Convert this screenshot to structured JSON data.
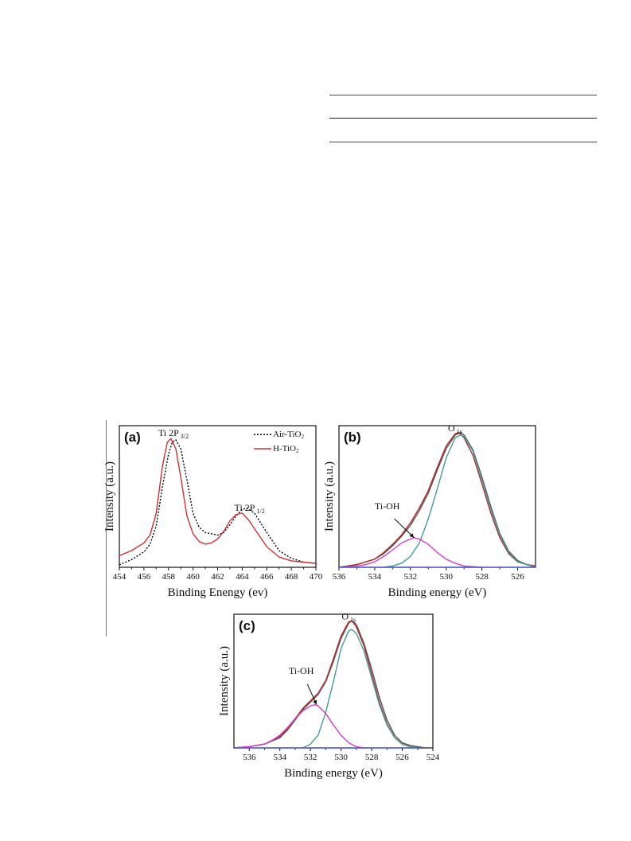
{
  "chart_data": [
    {
      "type": "line",
      "panel_label": "(a)",
      "xlabel": "Binding Enengy (ev)",
      "ylabel": "Intensity (a.u.)",
      "xlim": [
        454,
        470
      ],
      "ylim": [
        0,
        1.1
      ],
      "x_reversed": false,
      "xticks": [
        454,
        456,
        458,
        460,
        462,
        464,
        466,
        468,
        470
      ],
      "annotations": [
        {
          "text": "Ti 2P",
          "sub": "3/2",
          "x": 458.4,
          "y": 1.02
        },
        {
          "text": "Ti 2P",
          "sub": "1/2",
          "x": 464.6,
          "y": 0.44
        }
      ],
      "legend": {
        "placement": "top-right",
        "entries": [
          {
            "name": "Air-TiO",
            "sub": "2",
            "style": "dotted",
            "color": "#000000"
          },
          {
            "name": "H-TiO",
            "sub": "2",
            "style": "solid",
            "color": "#d03030"
          }
        ]
      },
      "series": [
        {
          "name": "Air-TiO2",
          "color": "#000000",
          "dash": "2,2",
          "x": [
            454,
            455,
            456,
            456.5,
            457,
            457.5,
            458,
            458.3,
            458.6,
            459,
            459.5,
            460,
            460.5,
            461,
            462,
            462.5,
            463,
            463.5,
            464,
            464.4,
            465,
            466,
            467,
            468,
            469,
            470
          ],
          "y": [
            0.02,
            0.06,
            0.12,
            0.18,
            0.32,
            0.62,
            0.88,
            0.97,
            0.99,
            0.92,
            0.68,
            0.42,
            0.31,
            0.27,
            0.25,
            0.27,
            0.33,
            0.4,
            0.45,
            0.46,
            0.42,
            0.27,
            0.13,
            0.07,
            0.04,
            0.03
          ]
        },
        {
          "name": "H-TiO2",
          "color": "#d03030",
          "dash": "",
          "x": [
            454,
            455,
            456,
            456.5,
            457,
            457.5,
            457.9,
            458.2,
            458.6,
            459,
            459.5,
            460,
            460.5,
            461,
            461.5,
            462,
            462.5,
            463,
            463.5,
            464,
            464.5,
            465,
            466,
            467,
            468,
            469,
            470
          ],
          "y": [
            0.09,
            0.13,
            0.19,
            0.25,
            0.42,
            0.78,
            0.97,
            1.0,
            0.92,
            0.7,
            0.4,
            0.26,
            0.2,
            0.18,
            0.19,
            0.22,
            0.28,
            0.36,
            0.41,
            0.42,
            0.37,
            0.3,
            0.16,
            0.08,
            0.05,
            0.04,
            0.03
          ]
        }
      ]
    },
    {
      "type": "line",
      "panel_label": "(b)",
      "xlabel": "Binding energy (eV)",
      "ylabel": "Intensity (a.u.)",
      "xlim": [
        536,
        525
      ],
      "ylim": [
        0,
        1.05
      ],
      "x_reversed": true,
      "xticks": [
        536,
        534,
        532,
        530,
        528,
        526
      ],
      "annotations": [
        {
          "text": "O",
          "sub": "1s",
          "x": 529.5,
          "y": 1.01
        },
        {
          "text": "Ti-OH",
          "sub": "",
          "x": 533.3,
          "y": 0.43
        }
      ],
      "arrow": {
        "from": [
          532.9,
          0.36
        ],
        "to": [
          531.8,
          0.22
        ]
      },
      "series": [
        {
          "name": "",
          "color": "#555555",
          "dash": "",
          "x": [
            536,
            535,
            534,
            533.5,
            533,
            532.5,
            532,
            531.5,
            531,
            530.5,
            530,
            529.5,
            529.2,
            529,
            528.5,
            528,
            527.5,
            527,
            526.5,
            526,
            525.5,
            525
          ],
          "y": [
            0.0,
            0.02,
            0.06,
            0.1,
            0.16,
            0.23,
            0.31,
            0.42,
            0.55,
            0.72,
            0.88,
            0.98,
            1.0,
            0.98,
            0.87,
            0.67,
            0.45,
            0.25,
            0.12,
            0.05,
            0.02,
            0.01
          ]
        },
        {
          "name": "",
          "color": "#b03030",
          "dash": "",
          "x": [
            536,
            535,
            534,
            533.5,
            533,
            532.5,
            532,
            531.5,
            531,
            530.5,
            530,
            529.5,
            529.3,
            529,
            528.5,
            528,
            527.5,
            527,
            526.5,
            526,
            525.5,
            525
          ],
          "y": [
            0.0,
            0.02,
            0.06,
            0.11,
            0.17,
            0.24,
            0.33,
            0.44,
            0.57,
            0.74,
            0.9,
            0.99,
            1.0,
            0.96,
            0.83,
            0.62,
            0.4,
            0.22,
            0.1,
            0.04,
            0.02,
            0.01
          ]
        },
        {
          "name": "",
          "color": "#4a9a9a",
          "dash": "",
          "x": [
            533.5,
            533,
            532.5,
            532,
            531.5,
            531,
            530.5,
            530,
            529.5,
            529.2,
            529,
            528.5,
            528,
            527.5,
            527,
            526.5,
            526,
            525.5,
            525
          ],
          "y": [
            0.0,
            0.01,
            0.03,
            0.08,
            0.18,
            0.36,
            0.58,
            0.81,
            0.96,
            0.98,
            0.97,
            0.86,
            0.65,
            0.43,
            0.24,
            0.11,
            0.04,
            0.02,
            0.0
          ]
        },
        {
          "name": "",
          "color": "#d040d0",
          "dash": "",
          "x": [
            536,
            535,
            534.5,
            534,
            533.5,
            533,
            532.5,
            532,
            531.8,
            531.5,
            531,
            530.5,
            530,
            529.5,
            529,
            528.5,
            528
          ],
          "y": [
            0.0,
            0.01,
            0.02,
            0.04,
            0.08,
            0.13,
            0.18,
            0.21,
            0.22,
            0.21,
            0.17,
            0.11,
            0.06,
            0.03,
            0.01,
            0.005,
            0.0
          ]
        },
        {
          "name": "",
          "color": "#4a5ad0",
          "dash": "",
          "x": [
            536,
            525
          ],
          "y": [
            0.0,
            0.0
          ]
        }
      ]
    },
    {
      "type": "line",
      "panel_label": "(c)",
      "xlabel": "Binding energy (eV)",
      "ylabel": "Intensity (a.u.)",
      "xlim": [
        537,
        524
      ],
      "ylim": [
        0,
        1.05
      ],
      "x_reversed": true,
      "xticks": [
        536,
        534,
        532,
        530,
        528,
        526,
        524
      ],
      "annotations": [
        {
          "text": "O",
          "sub": "1s",
          "x": 529.5,
          "y": 1.01
        },
        {
          "text": "Ti-OH",
          "sub": "",
          "x": 532.6,
          "y": 0.58
        }
      ],
      "arrow": {
        "from": [
          532.2,
          0.5
        ],
        "to": [
          531.6,
          0.34
        ]
      },
      "series": [
        {
          "name": "",
          "color": "#555555",
          "dash": "",
          "x": [
            537,
            536,
            535,
            534,
            533.5,
            533,
            532.5,
            532,
            531.5,
            531,
            530.5,
            530,
            529.5,
            529.3,
            529,
            528.5,
            528,
            527.5,
            527,
            526.5,
            526,
            525.5,
            525,
            524.5
          ],
          "y": [
            0.0,
            0.01,
            0.03,
            0.08,
            0.14,
            0.22,
            0.3,
            0.36,
            0.42,
            0.52,
            0.68,
            0.86,
            0.98,
            1.0,
            0.97,
            0.82,
            0.62,
            0.4,
            0.22,
            0.1,
            0.04,
            0.02,
            0.01,
            0.0
          ]
        },
        {
          "name": "",
          "color": "#b03030",
          "dash": "",
          "x": [
            537,
            536,
            535,
            534,
            533.5,
            533,
            532.5,
            532,
            531.5,
            531,
            530.5,
            530,
            529.5,
            529.3,
            529,
            528.5,
            528,
            527.5,
            527,
            526.5,
            526,
            525.5,
            525,
            524.5
          ],
          "y": [
            0.0,
            0.01,
            0.03,
            0.09,
            0.15,
            0.23,
            0.31,
            0.37,
            0.43,
            0.53,
            0.7,
            0.88,
            0.99,
            1.0,
            0.95,
            0.8,
            0.58,
            0.36,
            0.19,
            0.08,
            0.03,
            0.01,
            0.0,
            0.0
          ]
        },
        {
          "name": "",
          "color": "#4a9a9a",
          "dash": "",
          "x": [
            532.5,
            532,
            531.5,
            531,
            530.5,
            530,
            529.5,
            529.3,
            529,
            528.5,
            528,
            527.5,
            527,
            526.5,
            526,
            525.5,
            525
          ],
          "y": [
            0.0,
            0.03,
            0.1,
            0.28,
            0.52,
            0.78,
            0.92,
            0.93,
            0.9,
            0.76,
            0.55,
            0.34,
            0.18,
            0.08,
            0.03,
            0.01,
            0.0
          ]
        },
        {
          "name": "",
          "color": "#d040d0",
          "dash": "",
          "x": [
            537,
            536,
            535,
            534.5,
            534,
            533.5,
            533,
            532.5,
            532,
            531.7,
            531.5,
            531,
            530.5,
            530,
            529.5,
            529,
            528.5
          ],
          "y": [
            0.0,
            0.01,
            0.03,
            0.06,
            0.1,
            0.16,
            0.23,
            0.29,
            0.33,
            0.34,
            0.33,
            0.27,
            0.18,
            0.1,
            0.04,
            0.01,
            0.0
          ]
        },
        {
          "name": "",
          "color": "#4a5ad0",
          "dash": "",
          "x": [
            537,
            524.5
          ],
          "y": [
            0.0,
            0.0
          ]
        }
      ]
    }
  ]
}
